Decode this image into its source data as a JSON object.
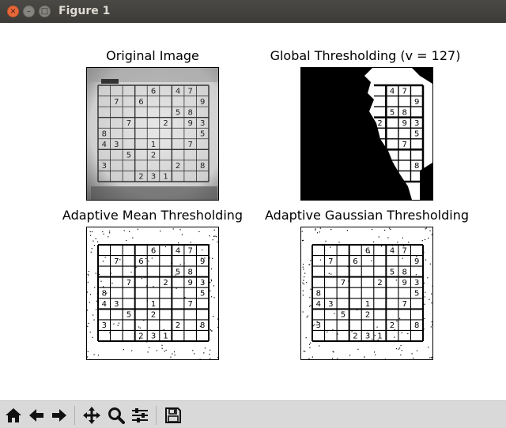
{
  "window": {
    "title": "Figure 1",
    "close_glyph": "×",
    "minimize_glyph": "–",
    "maximize_glyph": "□"
  },
  "subplots": [
    {
      "title": "Original Image"
    },
    {
      "title": "Global Thresholding (v = 127)"
    },
    {
      "title": "Adaptive Mean Thresholding"
    },
    {
      "title": "Adaptive Gaussian Thresholding"
    }
  ],
  "sudoku_digits": [
    "6",
    "4",
    "7",
    "7",
    "6",
    "9",
    "5",
    "8",
    "7",
    "2",
    "9",
    "3",
    "8",
    "5",
    "4",
    "3",
    "1",
    "7",
    "5",
    "2",
    "3",
    "2",
    "8",
    "2",
    "3",
    "1"
  ],
  "toolbar": {
    "buttons": [
      "home-icon",
      "back-arrow-icon",
      "forward-arrow-icon",
      "pan-icon",
      "zoom-icon",
      "configure-subplots-icon",
      "save-icon"
    ]
  },
  "colors": {
    "titlebar": "#3c3b37",
    "close": "#e9683a",
    "toolbar_bg": "#d9d9d9"
  }
}
